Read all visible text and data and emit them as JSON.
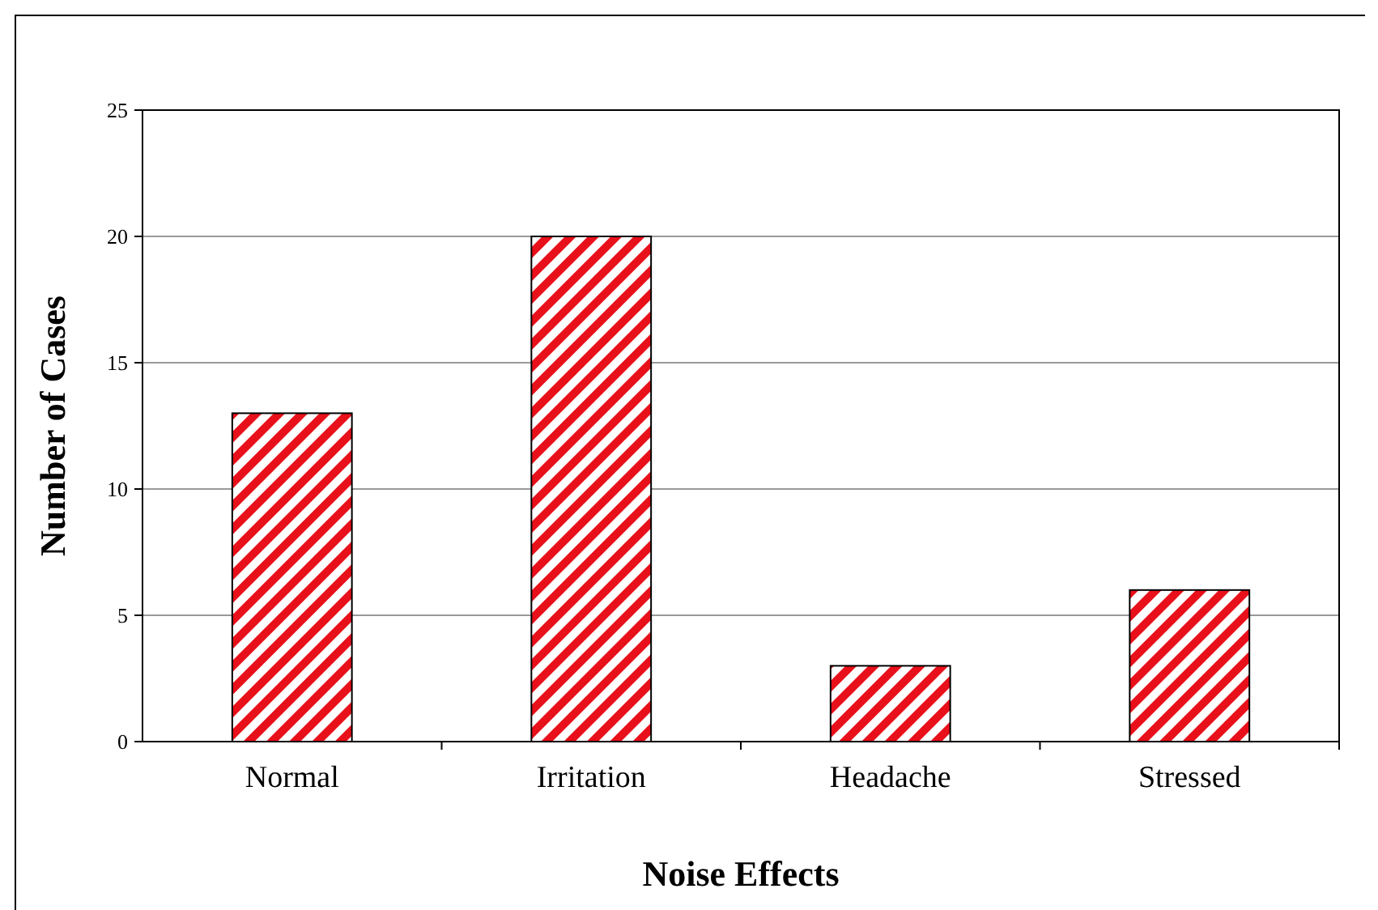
{
  "chart_data": {
    "type": "bar",
    "xlabel": "Noise Effects",
    "ylabel": "Number of Cases",
    "categories": [
      "Normal",
      "Irritation",
      "Headache",
      "Stressed"
    ],
    "values": [
      13,
      20,
      3,
      6
    ],
    "color": "#e8101a",
    "ylim": [
      0,
      25
    ],
    "yticks": [
      0,
      5,
      10,
      15,
      20,
      25
    ],
    "grid": "y"
  }
}
